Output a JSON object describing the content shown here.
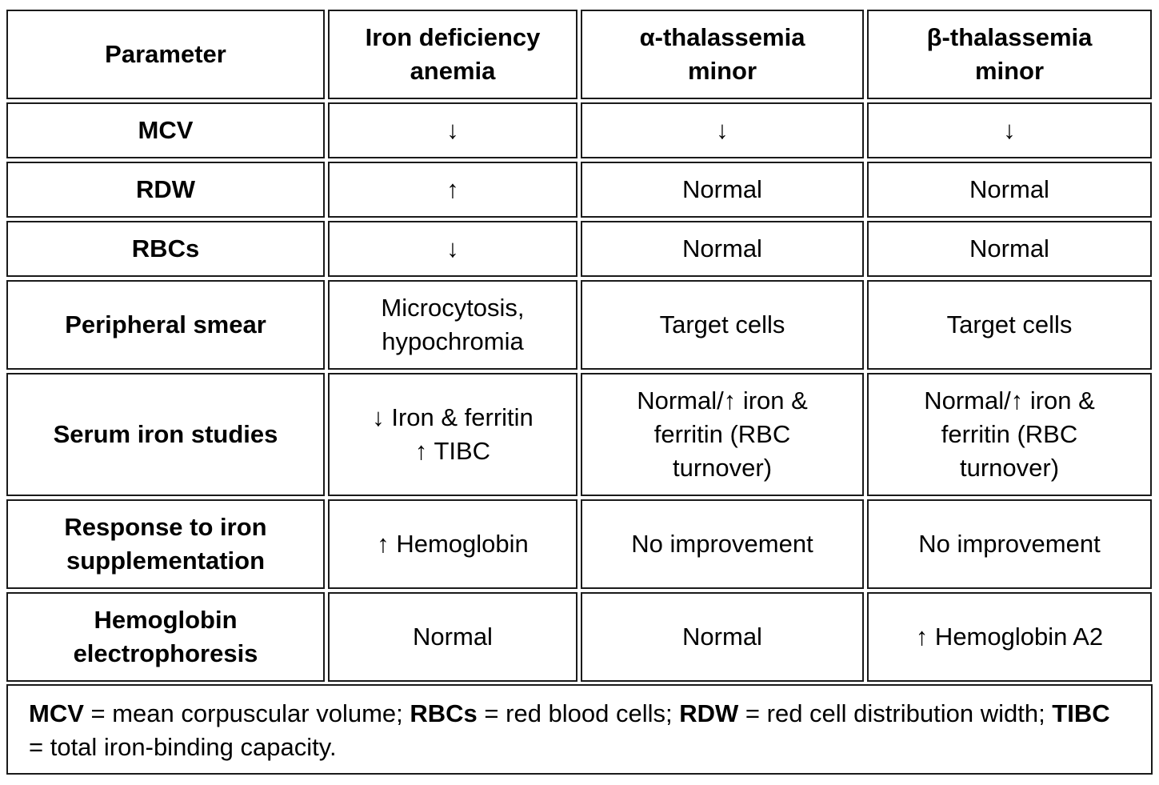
{
  "header": {
    "parameter": "Parameter",
    "iron_deficiency": "Iron deficiency\nanemia",
    "alpha_thal": "α-thalassemia\nminor",
    "beta_thal": "β-thalassemia\nminor"
  },
  "rows": {
    "mcv": {
      "label": "MCV",
      "ida": "↓",
      "alpha": "↓",
      "beta": "↓"
    },
    "rdw": {
      "label": "RDW",
      "ida": "↑",
      "alpha": "Normal",
      "beta": "Normal"
    },
    "rbcs": {
      "label": "RBCs",
      "ida": "↓",
      "alpha": "Normal",
      "beta": "Normal"
    },
    "smear": {
      "label": "Peripheral smear",
      "ida": "Microcytosis,\nhypochromia",
      "alpha": "Target cells",
      "beta": "Target cells"
    },
    "iron_studies": {
      "label": "Serum iron studies",
      "ida": "↓ Iron & ferritin\n↑ TIBC",
      "alpha": "Normal/↑ iron &\nferritin (RBC\nturnover)",
      "beta": "Normal/↑ iron &\nferritin (RBC\nturnover)"
    },
    "response": {
      "label": "Response to iron\nsupplementation",
      "ida": "↑ Hemoglobin",
      "alpha": "No improvement",
      "beta": "No improvement"
    },
    "electrophoresis": {
      "label": "Hemoglobin\nelectrophoresis",
      "ida": "Normal",
      "alpha": "Normal",
      "beta": "↑ Hemoglobin A2"
    }
  },
  "footer": {
    "mcv_abbr": "MCV",
    "mcv_def": " = mean corpuscular volume; ",
    "rbcs_abbr": "RBCs",
    "rbcs_def": " = red blood cells; ",
    "rdw_abbr": "RDW",
    "rdw_def": " = red cell distribution width; ",
    "tibc_abbr": "TIBC",
    "tibc_def": " = total iron-binding capacity."
  }
}
